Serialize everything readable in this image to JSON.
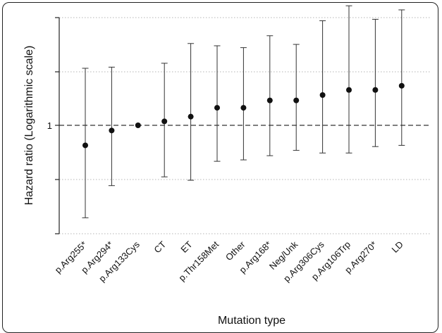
{
  "chart_data": {
    "type": "scatter",
    "xlabel": "Mutation type",
    "ylabel": "Hazard ratio (Logarithmic scale)",
    "y_scale": "log",
    "y_tick_labels": [
      "1"
    ],
    "grid": "horizontal dotted",
    "reference_line": 1,
    "categories": [
      "p.Arg255*",
      "p.Arg294*",
      "p.Arg133Cys",
      "CT",
      "ET",
      "p.Thr158Met",
      "Other",
      "p.Arg168*",
      "Neg/Unk",
      "p.Arg306Cys",
      "p.Arg106Trp",
      "p.Arg270*",
      "LD"
    ],
    "series": [
      {
        "estimate": [
          0.82,
          0.95,
          1.0,
          1.04,
          1.09,
          1.19,
          1.19,
          1.28,
          1.28,
          1.35,
          1.42,
          1.42,
          1.48
        ],
        "ci_lower": [
          0.4,
          0.55,
          1.0,
          0.6,
          0.58,
          0.7,
          0.71,
          0.74,
          0.78,
          0.76,
          0.76,
          0.81,
          0.82
        ],
        "ci_upper": [
          1.76,
          1.78,
          1.0,
          1.85,
          2.25,
          2.2,
          2.16,
          2.43,
          2.23,
          2.82,
          3.27,
          2.86,
          3.14
        ]
      }
    ]
  }
}
